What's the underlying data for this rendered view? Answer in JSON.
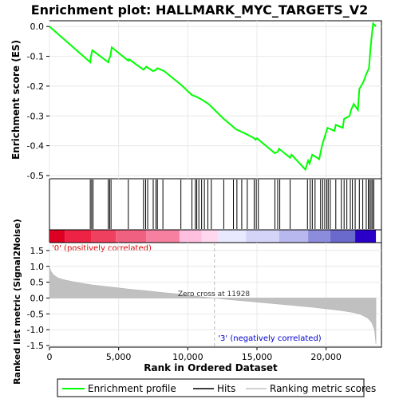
{
  "chart_data": {
    "type": "line",
    "title": "Enrichment plot: HALLMARK_MYC_TARGETS_V2",
    "top_panel": {
      "ylabel": "Enrichment score (ES)",
      "ylim": [
        -0.5,
        0.03
      ],
      "yticks": [
        "0.0",
        "-0.1",
        "-0.2",
        "-0.3",
        "-0.4",
        "-0.5"
      ],
      "ytick_values": [
        0.0,
        -0.1,
        -0.2,
        -0.3,
        -0.4,
        -0.5
      ],
      "series_name": "Enrichment profile",
      "color": "#00ff00",
      "points": [
        [
          0,
          0.0
        ],
        [
          2950,
          -0.12
        ],
        [
          3000,
          -0.1
        ],
        [
          3100,
          -0.08
        ],
        [
          4250,
          -0.12
        ],
        [
          4300,
          -0.11
        ],
        [
          4400,
          -0.1
        ],
        [
          4500,
          -0.07
        ],
        [
          5700,
          -0.115
        ],
        [
          5750,
          -0.11
        ],
        [
          6800,
          -0.145
        ],
        [
          6900,
          -0.14
        ],
        [
          7000,
          -0.135
        ],
        [
          7500,
          -0.15
        ],
        [
          7700,
          -0.145
        ],
        [
          7800,
          -0.14
        ],
        [
          8300,
          -0.15
        ],
        [
          9500,
          -0.195
        ],
        [
          10300,
          -0.23
        ],
        [
          10600,
          -0.235
        ],
        [
          11000,
          -0.245
        ],
        [
          11500,
          -0.26
        ],
        [
          12600,
          -0.31
        ],
        [
          13500,
          -0.345
        ],
        [
          14200,
          -0.36
        ],
        [
          14800,
          -0.375
        ],
        [
          14900,
          -0.38
        ],
        [
          15000,
          -0.375
        ],
        [
          16300,
          -0.425
        ],
        [
          16500,
          -0.42
        ],
        [
          16600,
          -0.41
        ],
        [
          17400,
          -0.44
        ],
        [
          17500,
          -0.43
        ],
        [
          18500,
          -0.48
        ],
        [
          18700,
          -0.45
        ],
        [
          18800,
          -0.46
        ],
        [
          19000,
          -0.43
        ],
        [
          19500,
          -0.445
        ],
        [
          19700,
          -0.4
        ],
        [
          19900,
          -0.37
        ],
        [
          20100,
          -0.34
        ],
        [
          20600,
          -0.35
        ],
        [
          20700,
          -0.33
        ],
        [
          21200,
          -0.34
        ],
        [
          21300,
          -0.31
        ],
        [
          21700,
          -0.3
        ],
        [
          21800,
          -0.28
        ],
        [
          22000,
          -0.26
        ],
        [
          22300,
          -0.28
        ],
        [
          22400,
          -0.21
        ],
        [
          22700,
          -0.185
        ],
        [
          22900,
          -0.16
        ],
        [
          23100,
          -0.14
        ],
        [
          23200,
          -0.08
        ],
        [
          23300,
          -0.03
        ],
        [
          23400,
          0.01
        ],
        [
          23600,
          0.0
        ]
      ]
    },
    "hits": [
      2950,
      3050,
      3150,
      4250,
      4350,
      4450,
      5700,
      6800,
      6950,
      7100,
      7500,
      7700,
      7800,
      8200,
      9500,
      10300,
      10550,
      10650,
      10800,
      11000,
      11200,
      11450,
      11700,
      12600,
      13300,
      13550,
      13900,
      14300,
      14800,
      14950,
      15100,
      16300,
      16500,
      16650,
      17400,
      18650,
      18850,
      19000,
      19200,
      19600,
      19750,
      19900,
      20050,
      20150,
      20300,
      20700,
      21100,
      21300,
      21500,
      21750,
      21900,
      22100,
      22400,
      22650,
      22900,
      23050,
      23150,
      23250,
      23350,
      23450
    ],
    "middle_band": {
      "segments": [
        {
          "start": 0,
          "end": 1100,
          "color": "#dd0022"
        },
        {
          "start": 1100,
          "end": 3000,
          "color": "#ee2244"
        },
        {
          "start": 3000,
          "end": 4800,
          "color": "#f04060"
        },
        {
          "start": 4800,
          "end": 7000,
          "color": "#f06080"
        },
        {
          "start": 7000,
          "end": 9400,
          "color": "#f580a0"
        },
        {
          "start": 9400,
          "end": 11000,
          "color": "#ffc0e0"
        },
        {
          "start": 11000,
          "end": 12200,
          "color": "#ffd8ef"
        },
        {
          "start": 12200,
          "end": 14200,
          "color": "#e8e8ff"
        },
        {
          "start": 14200,
          "end": 16600,
          "color": "#d4d4f8"
        },
        {
          "start": 16600,
          "end": 18700,
          "color": "#b8b8ee"
        },
        {
          "start": 18700,
          "end": 20300,
          "color": "#8c8cdc"
        },
        {
          "start": 20300,
          "end": 22100,
          "color": "#6a6acc"
        },
        {
          "start": 22100,
          "end": 23600,
          "color": "#2a00c8"
        }
      ],
      "positive_label": "'0' (positively correlated)",
      "negative_label": "'3' (negatively correlated)"
    },
    "bottom_panel": {
      "ylabel": "Ranked list metric (Signal2Noise)",
      "ylim": [
        -1.55,
        1.75
      ],
      "yticks": [
        "1.5",
        "1.0",
        "0.5",
        "0.0",
        "-0.5",
        "-1.0",
        "-1.5"
      ],
      "ytick_values": [
        1.5,
        1.0,
        0.5,
        0.0,
        -0.5,
        -1.0,
        -1.5
      ],
      "zero_cross_label": "Zero cross at 11928",
      "zero_cross": 11928,
      "metric_points": [
        [
          0,
          1.0
        ],
        [
          100,
          0.85
        ],
        [
          300,
          0.73
        ],
        [
          600,
          0.64
        ],
        [
          1000,
          0.58
        ],
        [
          2000,
          0.49
        ],
        [
          3000,
          0.42
        ],
        [
          4000,
          0.37
        ],
        [
          5000,
          0.32
        ],
        [
          6000,
          0.27
        ],
        [
          7000,
          0.23
        ],
        [
          8000,
          0.18
        ],
        [
          9000,
          0.14
        ],
        [
          10000,
          0.09
        ],
        [
          11000,
          0.04
        ],
        [
          11928,
          0.0
        ],
        [
          13000,
          -0.05
        ],
        [
          14000,
          -0.09
        ],
        [
          15000,
          -0.13
        ],
        [
          16000,
          -0.17
        ],
        [
          17000,
          -0.21
        ],
        [
          18000,
          -0.25
        ],
        [
          19000,
          -0.29
        ],
        [
          20000,
          -0.34
        ],
        [
          21000,
          -0.39
        ],
        [
          22000,
          -0.46
        ],
        [
          22500,
          -0.52
        ],
        [
          23000,
          -0.63
        ],
        [
          23300,
          -0.78
        ],
        [
          23500,
          -1.0
        ],
        [
          23600,
          -1.45
        ]
      ],
      "fill_color": "#c0c0c0"
    },
    "xlabel": "Rank in Ordered Dataset",
    "xlim": [
      0,
      24000
    ],
    "xticks": [
      "0",
      "5,000",
      "10,000",
      "15,000",
      "20,000"
    ],
    "xtick_values": [
      0,
      5000,
      10000,
      15000,
      20000
    ],
    "legend": {
      "placement": "bottom",
      "entries": [
        {
          "label": "Enrichment profile",
          "color": "#00ff00"
        },
        {
          "label": "Hits",
          "color": "#000000"
        },
        {
          "label": "Ranking metric scores",
          "color": "#c0c0c0"
        }
      ]
    }
  }
}
